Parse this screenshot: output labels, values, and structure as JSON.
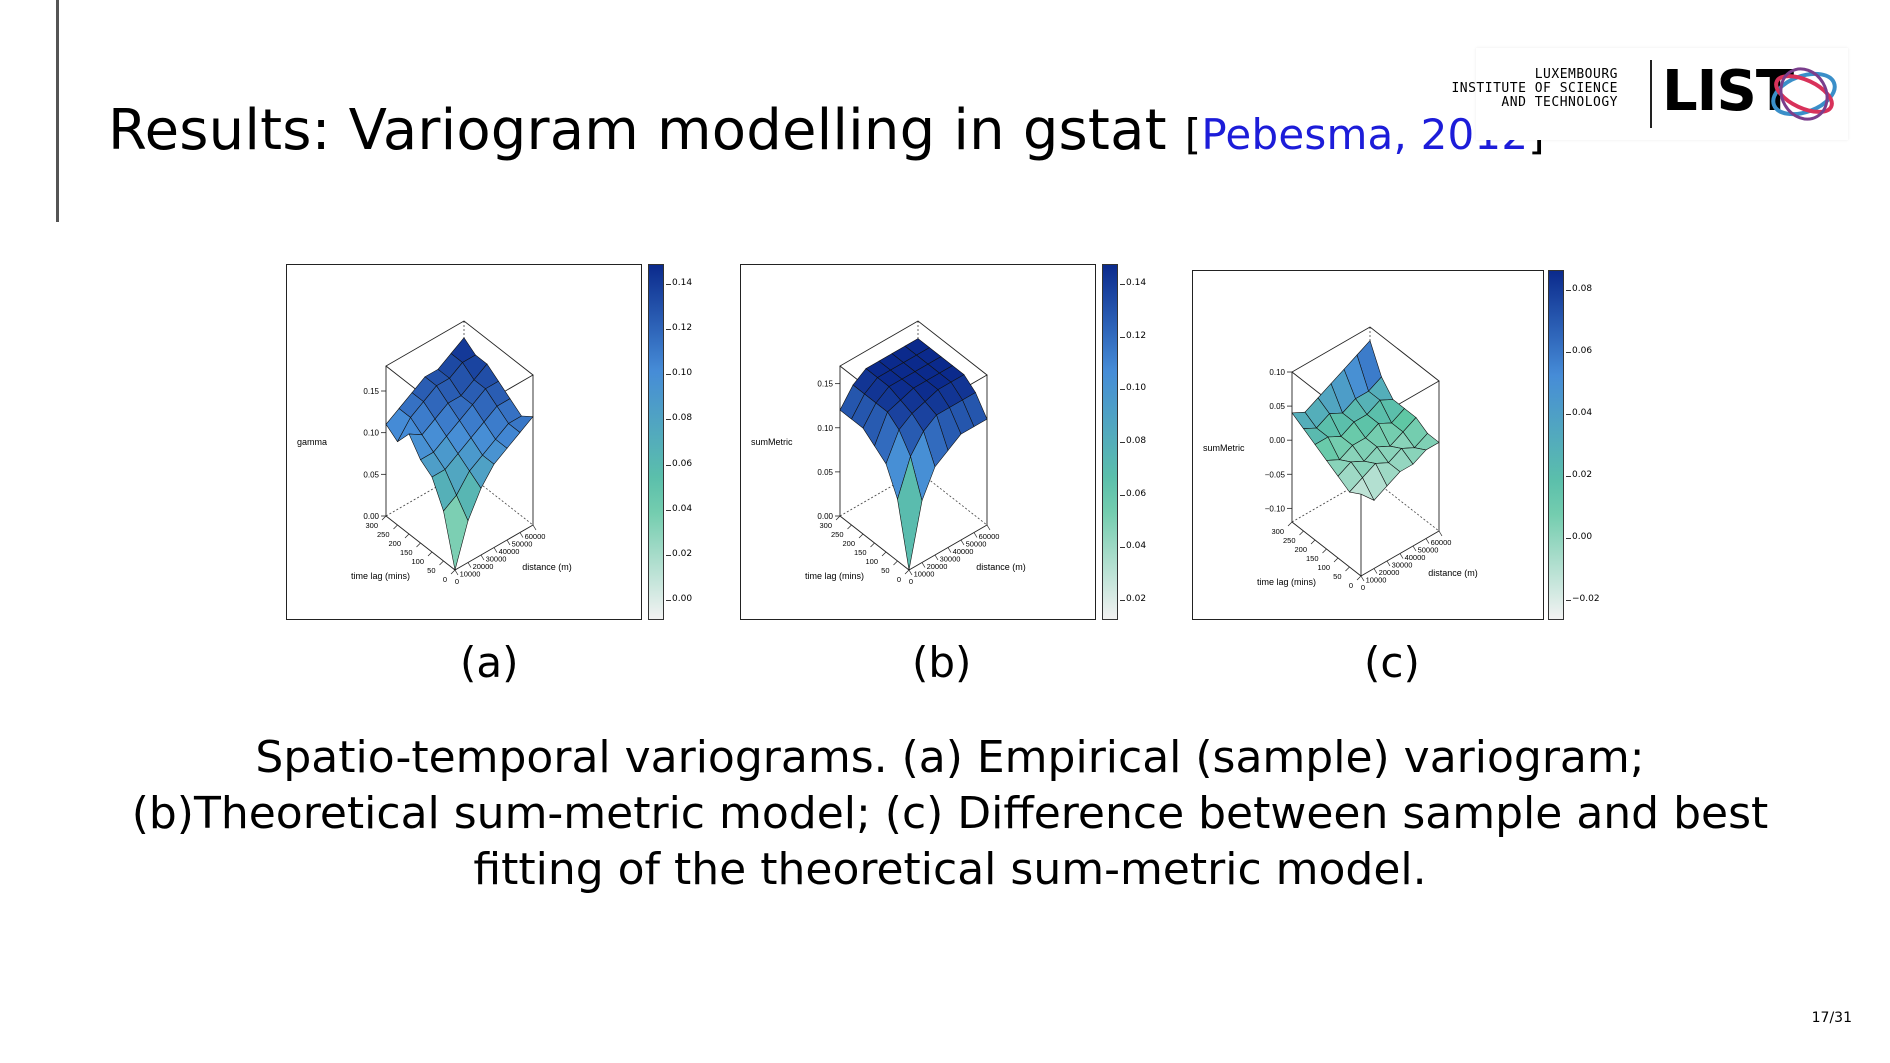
{
  "slide": {
    "title": "Results:  Variogram modelling in gstat",
    "citation_open": "[",
    "citation_name": "Pebesma, 2012",
    "citation_close": "]",
    "caption": "Spatio-temporal variograms. (a) Empirical (sample) variogram; (b)Theoretical sum-metric model; (c) Difference between sample and best fitting of the theoretical sum-metric model.",
    "page_number": "17/31"
  },
  "logo": {
    "line1": "LUXEMBOURG",
    "line2": "INSTITUTE OF SCIENCE",
    "line3": "AND TECHNOLOGY",
    "wordmark": "LIST",
    "colors": {
      "blue": "#3a8fc9",
      "red": "#d8325a",
      "purple": "#7a3e8c"
    }
  },
  "colors": {
    "low": "#f2f2f2",
    "mid": "#5fc7a4",
    "high": "#0b2a8c"
  },
  "chart_data": [
    {
      "type": "surface3d",
      "panel_label": "(a)",
      "zlabel": "gamma",
      "xlabel": "time lag (mins)",
      "ylabel": "distance (m)",
      "z_ticks": [
        "0.00",
        "0.05",
        "0.10",
        "0.15"
      ],
      "time_ticks": [
        "0",
        "50",
        "100",
        "150",
        "200",
        "250",
        "300"
      ],
      "distance_ticks": [
        "0",
        "10000",
        "20000",
        "30000",
        "40000",
        "50000",
        "60000"
      ],
      "colorbar_ticks": [
        "0.14",
        "0.12",
        "0.10",
        "0.08",
        "0.06",
        "0.04",
        "0.02",
        "0.00"
      ],
      "time": [
        0,
        50,
        100,
        150,
        200,
        250,
        300
      ],
      "distance": [
        0,
        10000,
        20000,
        30000,
        40000,
        50000,
        60000
      ],
      "z": [
        [
          0.0,
          0.05,
          0.08,
          0.1,
          0.11,
          0.12,
          0.13
        ],
        [
          0.06,
          0.07,
          0.09,
          0.1,
          0.11,
          0.12,
          0.12
        ],
        [
          0.09,
          0.09,
          0.1,
          0.11,
          0.12,
          0.13,
          0.13
        ],
        [
          0.1,
          0.1,
          0.11,
          0.12,
          0.13,
          0.14,
          0.14
        ],
        [
          0.12,
          0.11,
          0.12,
          0.13,
          0.13,
          0.14,
          0.15
        ],
        [
          0.1,
          0.12,
          0.13,
          0.14,
          0.14,
          0.15,
          0.15
        ],
        [
          0.11,
          0.12,
          0.13,
          0.14,
          0.14,
          0.15,
          0.16
        ]
      ]
    },
    {
      "type": "surface3d",
      "panel_label": "(b)",
      "zlabel": "sumMetric",
      "xlabel": "time lag (mins)",
      "ylabel": "distance (m)",
      "z_ticks": [
        "0.00",
        "0.05",
        "0.10",
        "0.15"
      ],
      "time_ticks": [
        "0",
        "50",
        "100",
        "150",
        "200",
        "250",
        "300"
      ],
      "distance_ticks": [
        "0",
        "10000",
        "20000",
        "30000",
        "40000",
        "50000",
        "60000"
      ],
      "colorbar_ticks": [
        "0.14",
        "0.12",
        "0.10",
        "0.08",
        "0.06",
        "0.04",
        "0.02"
      ],
      "time": [
        0,
        50,
        100,
        150,
        200,
        250,
        300
      ],
      "distance": [
        0,
        10000,
        20000,
        30000,
        40000,
        50000,
        60000
      ],
      "z": [
        [
          0.0,
          0.07,
          0.1,
          0.11,
          0.12,
          0.12,
          0.12
        ],
        [
          0.07,
          0.11,
          0.13,
          0.14,
          0.14,
          0.14,
          0.14
        ],
        [
          0.1,
          0.13,
          0.14,
          0.145,
          0.15,
          0.15,
          0.15
        ],
        [
          0.11,
          0.14,
          0.145,
          0.15,
          0.15,
          0.15,
          0.15
        ],
        [
          0.12,
          0.14,
          0.15,
          0.15,
          0.15,
          0.15,
          0.15
        ],
        [
          0.12,
          0.14,
          0.15,
          0.15,
          0.15,
          0.15,
          0.15
        ],
        [
          0.12,
          0.14,
          0.15,
          0.15,
          0.15,
          0.15,
          0.15
        ]
      ]
    },
    {
      "type": "surface3d",
      "panel_label": "(c)",
      "zlabel": "sumMetric",
      "xlabel": "time lag (mins)",
      "ylabel": "distance (m)",
      "z_ticks": [
        "−0.10",
        "−0.05",
        "0.00",
        "0.05",
        "0.10"
      ],
      "time_ticks": [
        "0",
        "50",
        "100",
        "150",
        "200",
        "250",
        "300"
      ],
      "distance_ticks": [
        "0",
        "10000",
        "20000",
        "30000",
        "40000",
        "50000",
        "60000"
      ],
      "colorbar_ticks": [
        "0.08",
        "0.06",
        "0.04",
        "0.02",
        "0.00",
        "−0.02"
      ],
      "time": [
        0,
        50,
        100,
        150,
        200,
        250,
        300
      ],
      "distance": [
        0,
        10000,
        20000,
        30000,
        40000,
        50000,
        60000
      ],
      "z": [
        [
          0.0,
          -0.02,
          -0.01,
          0.0,
          0.0,
          0.01,
          0.01
        ],
        [
          -0.01,
          0.0,
          0.01,
          0.0,
          0.01,
          0.0,
          0.01
        ],
        [
          0.0,
          0.01,
          0.0,
          0.01,
          0.0,
          0.01,
          0.02
        ],
        [
          0.01,
          0.0,
          0.01,
          0.01,
          0.02,
          0.01,
          0.02
        ],
        [
          0.02,
          0.02,
          0.01,
          0.02,
          0.02,
          0.03,
          0.02
        ],
        [
          0.03,
          0.02,
          0.03,
          0.02,
          0.03,
          0.03,
          0.04
        ],
        [
          0.04,
          0.03,
          0.04,
          0.05,
          0.06,
          0.07,
          0.08
        ]
      ]
    }
  ]
}
